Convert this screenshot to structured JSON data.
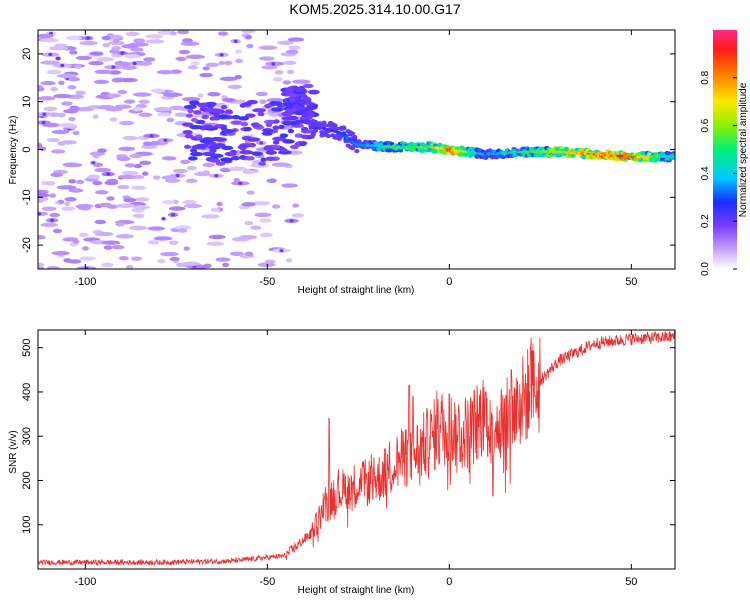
{
  "title": "KOM5.2025.314.10.00.G17",
  "chart_data": [
    {
      "type": "heatmap",
      "name": "spectrogram",
      "xlabel": "Height of straight line (km)",
      "ylabel": "Frequency (Hz)",
      "xlim": [
        -113,
        62
      ],
      "ylim": [
        -25,
        25
      ],
      "xticks": [
        -100,
        -50,
        0,
        50
      ],
      "yticks": [
        -20,
        -10,
        0,
        10,
        20
      ],
      "colorbar": {
        "label": "Normalized spectral amplitude",
        "range": [
          0.0,
          1.0
        ],
        "ticks": [
          0.0,
          0.2,
          0.4,
          0.6,
          0.8
        ],
        "tick_labels": [
          "0.0",
          "0.2",
          "0.4",
          "0.6",
          "0.8"
        ]
      },
      "ridge": {
        "description_points": [
          {
            "x": -35,
            "freq": 4.5,
            "amp": 0.25
          },
          {
            "x": -30,
            "freq": 3.5,
            "amp": 0.3
          },
          {
            "x": -25,
            "freq": 1.0,
            "amp": 0.35
          },
          {
            "x": -15,
            "freq": 0.5,
            "amp": 0.55
          },
          {
            "x": -5,
            "freq": 0.5,
            "amp": 0.6
          },
          {
            "x": 0,
            "freq": 0.0,
            "amp": 0.9
          },
          {
            "x": 10,
            "freq": -1.0,
            "amp": 0.35
          },
          {
            "x": 20,
            "freq": -0.5,
            "amp": 0.5
          },
          {
            "x": 30,
            "freq": -0.5,
            "amp": 0.7
          },
          {
            "x": 40,
            "freq": -1.0,
            "amp": 0.85
          },
          {
            "x": 50,
            "freq": -1.5,
            "amp": 0.9
          },
          {
            "x": 60,
            "freq": -1.5,
            "amp": 0.45
          }
        ]
      }
    },
    {
      "type": "line",
      "name": "snr",
      "xlabel": "Height of straight line (km)",
      "ylabel": "SNR (v/v)",
      "xlim": [
        -113,
        62
      ],
      "ylim": [
        0,
        540
      ],
      "xticks": [
        -100,
        -50,
        0,
        50
      ],
      "yticks": [
        100,
        200,
        300,
        400,
        500
      ],
      "color": "#e8312f",
      "trend": [
        {
          "x": -113,
          "y": 15
        },
        {
          "x": -80,
          "y": 15
        },
        {
          "x": -60,
          "y": 18
        },
        {
          "x": -45,
          "y": 30
        },
        {
          "x": -38,
          "y": 80
        },
        {
          "x": -33,
          "y": 160
        },
        {
          "x": -28,
          "y": 185
        },
        {
          "x": -20,
          "y": 200
        },
        {
          "x": -15,
          "y": 240
        },
        {
          "x": -8,
          "y": 270
        },
        {
          "x": -2,
          "y": 320
        },
        {
          "x": 5,
          "y": 310
        },
        {
          "x": 10,
          "y": 350
        },
        {
          "x": 15,
          "y": 330
        },
        {
          "x": 20,
          "y": 380
        },
        {
          "x": 30,
          "y": 470
        },
        {
          "x": 40,
          "y": 510
        },
        {
          "x": 50,
          "y": 520
        },
        {
          "x": 62,
          "y": 525
        }
      ],
      "spikes": [
        {
          "x": -33,
          "y": 340
        },
        {
          "x": -11,
          "y": 415
        },
        {
          "x": -10,
          "y": 390
        },
        {
          "x": 0,
          "y": 395
        },
        {
          "x": 10,
          "y": 400
        },
        {
          "x": 12,
          "y": 165
        },
        {
          "x": 17,
          "y": 450
        }
      ]
    }
  ]
}
